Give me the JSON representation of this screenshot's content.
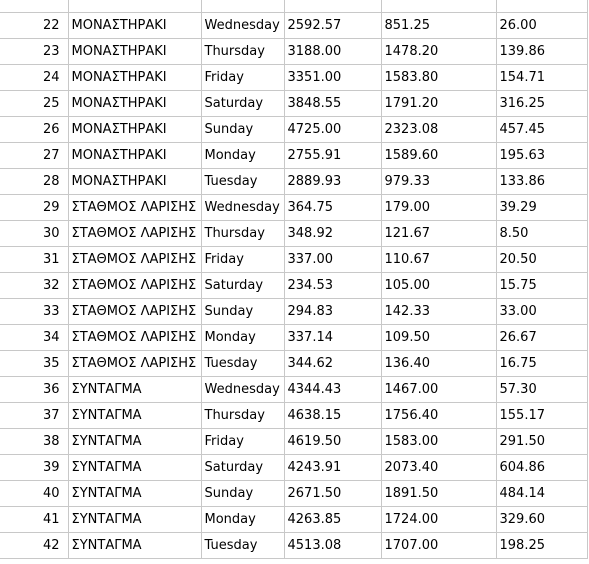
{
  "rows": [
    {
      "index": "",
      "station": "",
      "day": "",
      "v1": "",
      "v2": "",
      "v3": ""
    },
    {
      "index": "22",
      "station": "ΜΟΝΑΣΤΗΡΑΚΙ",
      "day": "Wednesday",
      "v1": "2592.57",
      "v2": "851.25",
      "v3": "26.00"
    },
    {
      "index": "23",
      "station": "ΜΟΝΑΣΤΗΡΑΚΙ",
      "day": "Thursday",
      "v1": "3188.00",
      "v2": "1478.20",
      "v3": "139.86"
    },
    {
      "index": "24",
      "station": "ΜΟΝΑΣΤΗΡΑΚΙ",
      "day": "Friday",
      "v1": "3351.00",
      "v2": "1583.80",
      "v3": "154.71"
    },
    {
      "index": "25",
      "station": "ΜΟΝΑΣΤΗΡΑΚΙ",
      "day": "Saturday",
      "v1": "3848.55",
      "v2": "1791.20",
      "v3": "316.25"
    },
    {
      "index": "26",
      "station": "ΜΟΝΑΣΤΗΡΑΚΙ",
      "day": "Sunday",
      "v1": "4725.00",
      "v2": "2323.08",
      "v3": "457.45"
    },
    {
      "index": "27",
      "station": "ΜΟΝΑΣΤΗΡΑΚΙ",
      "day": "Monday",
      "v1": "2755.91",
      "v2": "1589.60",
      "v3": "195.63"
    },
    {
      "index": "28",
      "station": "ΜΟΝΑΣΤΗΡΑΚΙ",
      "day": "Tuesday",
      "v1": "2889.93",
      "v2": "979.33",
      "v3": "133.86"
    },
    {
      "index": "29",
      "station": "ΣΤΑΘΜΟΣ ΛΑΡΙΣΗΣ",
      "day": "Wednesday",
      "v1": "364.75",
      "v2": "179.00",
      "v3": "39.29"
    },
    {
      "index": "30",
      "station": "ΣΤΑΘΜΟΣ ΛΑΡΙΣΗΣ",
      "day": "Thursday",
      "v1": "348.92",
      "v2": "121.67",
      "v3": "8.50"
    },
    {
      "index": "31",
      "station": "ΣΤΑΘΜΟΣ ΛΑΡΙΣΗΣ",
      "day": "Friday",
      "v1": "337.00",
      "v2": "110.67",
      "v3": "20.50"
    },
    {
      "index": "32",
      "station": "ΣΤΑΘΜΟΣ ΛΑΡΙΣΗΣ",
      "day": "Saturday",
      "v1": "234.53",
      "v2": "105.00",
      "v3": "15.75"
    },
    {
      "index": "33",
      "station": "ΣΤΑΘΜΟΣ ΛΑΡΙΣΗΣ",
      "day": "Sunday",
      "v1": "294.83",
      "v2": "142.33",
      "v3": "33.00"
    },
    {
      "index": "34",
      "station": "ΣΤΑΘΜΟΣ ΛΑΡΙΣΗΣ",
      "day": "Monday",
      "v1": "337.14",
      "v2": "109.50",
      "v3": "26.67"
    },
    {
      "index": "35",
      "station": "ΣΤΑΘΜΟΣ ΛΑΡΙΣΗΣ",
      "day": "Tuesday",
      "v1": "344.62",
      "v2": "136.40",
      "v3": "16.75"
    },
    {
      "index": "36",
      "station": "ΣΥΝΤΑΓΜΑ",
      "day": "Wednesday",
      "v1": "4344.43",
      "v2": "1467.00",
      "v3": "57.30"
    },
    {
      "index": "37",
      "station": "ΣΥΝΤΑΓΜΑ",
      "day": "Thursday",
      "v1": "4638.15",
      "v2": "1756.40",
      "v3": "155.17"
    },
    {
      "index": "38",
      "station": "ΣΥΝΤΑΓΜΑ",
      "day": "Friday",
      "v1": "4619.50",
      "v2": "1583.00",
      "v3": "291.50"
    },
    {
      "index": "39",
      "station": "ΣΥΝΤΑΓΜΑ",
      "day": "Saturday",
      "v1": "4243.91",
      "v2": "2073.40",
      "v3": "604.86"
    },
    {
      "index": "40",
      "station": "ΣΥΝΤΑΓΜΑ",
      "day": "Sunday",
      "v1": "2671.50",
      "v2": "1891.50",
      "v3": "484.14"
    },
    {
      "index": "41",
      "station": "ΣΥΝΤΑΓΜΑ",
      "day": "Monday",
      "v1": "4263.85",
      "v2": "1724.00",
      "v3": "329.60"
    },
    {
      "index": "42",
      "station": "ΣΥΝΤΑΓΜΑ",
      "day": "Tuesday",
      "v1": "4513.08",
      "v2": "1707.00",
      "v3": "198.25"
    }
  ]
}
